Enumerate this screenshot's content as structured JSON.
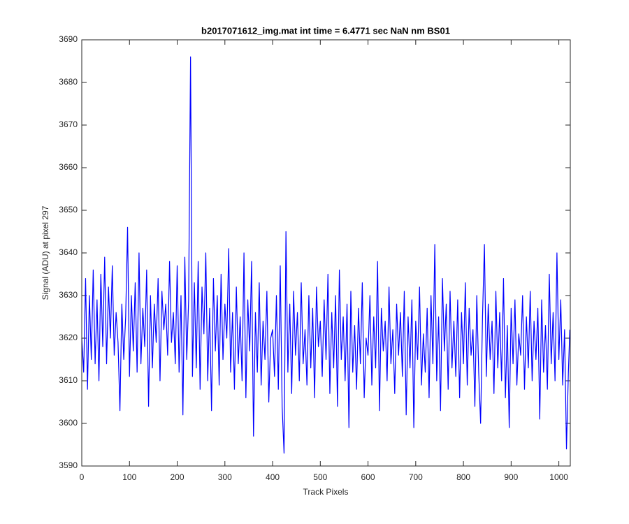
{
  "chart_data": {
    "type": "line",
    "title": "b2017071612_img.mat int time = 6.4771 sec  NaN nm BS01",
    "xlabel": "Track Pixels",
    "ylabel": "Signal (ADU) at pixel 297",
    "color": "#0000ff",
    "xlim": [
      0,
      1024
    ],
    "ylim": [
      3590,
      3690
    ],
    "xticks": [
      0,
      100,
      200,
      300,
      400,
      500,
      600,
      700,
      800,
      900,
      1000
    ],
    "yticks": [
      3590,
      3600,
      3610,
      3620,
      3630,
      3640,
      3650,
      3660,
      3670,
      3680,
      3690
    ],
    "x": [
      0,
      4,
      8,
      12,
      16,
      20,
      24,
      28,
      32,
      36,
      40,
      44,
      48,
      52,
      56,
      60,
      64,
      68,
      72,
      76,
      80,
      84,
      88,
      92,
      96,
      100,
      104,
      108,
      112,
      116,
      120,
      124,
      128,
      132,
      136,
      140,
      144,
      148,
      152,
      156,
      160,
      164,
      168,
      172,
      176,
      180,
      184,
      188,
      192,
      196,
      200,
      204,
      208,
      212,
      216,
      220,
      224,
      228,
      232,
      236,
      240,
      244,
      248,
      252,
      256,
      260,
      264,
      268,
      272,
      276,
      280,
      284,
      288,
      292,
      296,
      300,
      304,
      308,
      312,
      316,
      320,
      324,
      328,
      332,
      336,
      340,
      344,
      348,
      352,
      356,
      360,
      364,
      368,
      372,
      376,
      380,
      384,
      388,
      392,
      396,
      400,
      404,
      408,
      412,
      416,
      420,
      424,
      428,
      432,
      436,
      440,
      444,
      448,
      452,
      456,
      460,
      464,
      468,
      472,
      476,
      480,
      484,
      488,
      492,
      496,
      500,
      504,
      508,
      512,
      516,
      520,
      524,
      528,
      532,
      536,
      540,
      544,
      548,
      552,
      556,
      560,
      564,
      568,
      572,
      576,
      580,
      584,
      588,
      592,
      596,
      600,
      604,
      608,
      612,
      616,
      620,
      624,
      628,
      632,
      636,
      640,
      644,
      648,
      652,
      656,
      660,
      664,
      668,
      672,
      676,
      680,
      684,
      688,
      692,
      696,
      700,
      704,
      708,
      712,
      716,
      720,
      724,
      728,
      732,
      736,
      740,
      744,
      748,
      752,
      756,
      760,
      764,
      768,
      772,
      776,
      780,
      784,
      788,
      792,
      796,
      800,
      804,
      808,
      812,
      816,
      820,
      824,
      828,
      832,
      836,
      840,
      844,
      848,
      852,
      856,
      860,
      864,
      868,
      872,
      876,
      880,
      884,
      888,
      892,
      896,
      900,
      904,
      908,
      912,
      916,
      920,
      924,
      928,
      932,
      936,
      940,
      944,
      948,
      952,
      956,
      960,
      964,
      968,
      972,
      976,
      980,
      984,
      988,
      992,
      996,
      1000,
      1004,
      1008,
      1012,
      1016,
      1020,
      1023
    ],
    "values": [
      3620,
      3612,
      3634,
      3608,
      3630,
      3615,
      3636,
      3614,
      3629,
      3610,
      3635,
      3618,
      3639,
      3614,
      3632,
      3620,
      3637,
      3616,
      3626,
      3619,
      3603,
      3628,
      3615,
      3625,
      3646,
      3611,
      3630,
      3617,
      3633,
      3612,
      3640,
      3614,
      3627,
      3618,
      3636,
      3604,
      3630,
      3613,
      3628,
      3619,
      3634,
      3610,
      3631,
      3622,
      3628,
      3616,
      3638,
      3619,
      3626,
      3614,
      3637,
      3612,
      3630,
      3602,
      3639,
      3615,
      3629,
      3686,
      3611,
      3633,
      3613,
      3638,
      3608,
      3632,
      3621,
      3640,
      3610,
      3627,
      3603,
      3634,
      3617,
      3630,
      3609,
      3635,
      3615,
      3628,
      3620,
      3641,
      3612,
      3626,
      3608,
      3632,
      3614,
      3625,
      3610,
      3640,
      3606,
      3629,
      3617,
      3638,
      3597,
      3626,
      3612,
      3633,
      3609,
      3624,
      3615,
      3631,
      3605,
      3620,
      3622,
      3611,
      3630,
      3608,
      3637,
      3604,
      3593,
      3645,
      3612,
      3628,
      3607,
      3631,
      3616,
      3626,
      3610,
      3633,
      3614,
      3622,
      3609,
      3630,
      3613,
      3627,
      3606,
      3632,
      3618,
      3624,
      3611,
      3629,
      3615,
      3635,
      3607,
      3626,
      3613,
      3630,
      3604,
      3636,
      3615,
      3625,
      3610,
      3628,
      3599,
      3631,
      3612,
      3623,
      3608,
      3627,
      3614,
      3633,
      3606,
      3620,
      3616,
      3630,
      3609,
      3625,
      3613,
      3638,
      3603,
      3627,
      3617,
      3624,
      3610,
      3632,
      3614,
      3622,
      3607,
      3628,
      3616,
      3626,
      3611,
      3631,
      3602,
      3625,
      3613,
      3629,
      3599,
      3624,
      3615,
      3632,
      3609,
      3621,
      3612,
      3627,
      3606,
      3630,
      3614,
      3642,
      3610,
      3625,
      3603,
      3634,
      3617,
      3628,
      3608,
      3631,
      3613,
      3624,
      3611,
      3629,
      3606,
      3626,
      3614,
      3633,
      3609,
      3627,
      3616,
      3622,
      3604,
      3630,
      3612,
      3600,
      3625,
      3642,
      3611,
      3628,
      3615,
      3624,
      3607,
      3631,
      3613,
      3626,
      3610,
      3634,
      3606,
      3623,
      3599,
      3627,
      3614,
      3629,
      3609,
      3621,
      3616,
      3630,
      3608,
      3625,
      3613,
      3631,
      3610,
      3624,
      3615,
      3627,
      3601,
      3629,
      3612,
      3623,
      3608,
      3635,
      3614,
      3626,
      3610,
      3640,
      3615,
      3629,
      3609,
      3622,
      3594,
      3612,
      3622
    ]
  }
}
